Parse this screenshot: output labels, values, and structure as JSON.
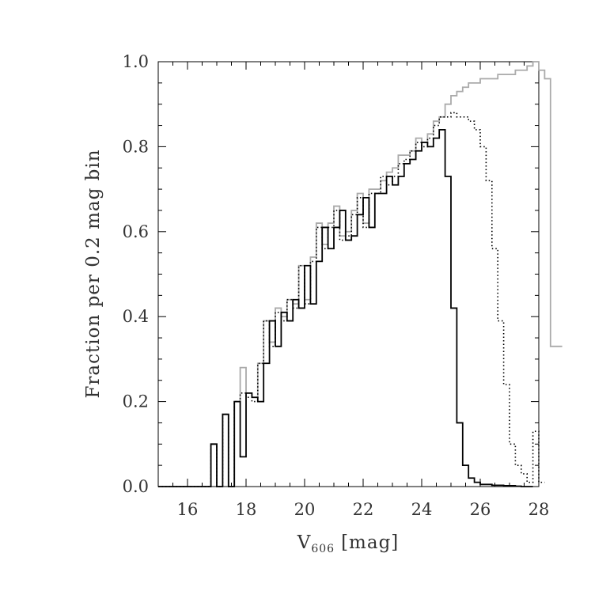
{
  "chart_data": {
    "type": "line",
    "step": true,
    "title": "",
    "xlabel": "V",
    "xlabel_subscript": "606",
    "xlabel_unit": "[mag]",
    "ylabel": "Fraction per 0.2 mag bin",
    "xlim": [
      15,
      28
    ],
    "ylim": [
      0,
      1.0
    ],
    "x_ticks": [
      "16",
      "18",
      "20",
      "22",
      "24",
      "26",
      "28"
    ],
    "y_ticks": [
      "0.0",
      "0.2",
      "0.4",
      "0.6",
      "0.8",
      "1.0"
    ],
    "grid": false,
    "legend": "none",
    "bin_width": 0.2,
    "x_start": 15.0,
    "series": [
      {
        "style": "solid",
        "color": "#aaaaaa",
        "values": [
          0,
          0,
          0,
          0,
          0,
          0,
          0,
          0,
          0,
          0.1,
          0,
          0.17,
          0,
          0.2,
          0.28,
          0.22,
          0.21,
          0.29,
          0.39,
          0.34,
          0.42,
          0.4,
          0.44,
          0.43,
          0.52,
          0.44,
          0.54,
          0.62,
          0.57,
          0.62,
          0.66,
          0.59,
          0.6,
          0.65,
          0.69,
          0.62,
          0.7,
          0.7,
          0.72,
          0.74,
          0.75,
          0.78,
          0.78,
          0.79,
          0.82,
          0.81,
          0.83,
          0.86,
          0.87,
          0.9,
          0.92,
          0.93,
          0.94,
          0.95,
          0.95,
          0.96,
          0.96,
          0.96,
          0.97,
          0.97,
          0.97,
          0.98,
          0.98,
          0.99,
          1.0,
          0.98,
          0.96,
          0.33,
          0.33
        ]
      },
      {
        "style": "dotted",
        "color": "#000000",
        "values": [
          0,
          0,
          0,
          0,
          0,
          0,
          0,
          0,
          0,
          0.1,
          0,
          0.17,
          0,
          0.2,
          0.22,
          0.21,
          0.2,
          0.29,
          0.39,
          0.33,
          0.41,
          0.39,
          0.44,
          0.42,
          0.52,
          0.43,
          0.53,
          0.61,
          0.56,
          0.61,
          0.65,
          0.58,
          0.59,
          0.64,
          0.68,
          0.61,
          0.69,
          0.69,
          0.73,
          0.71,
          0.73,
          0.76,
          0.77,
          0.79,
          0.81,
          0.8,
          0.82,
          0.85,
          0.87,
          0.87,
          0.88,
          0.87,
          0.87,
          0.86,
          0.84,
          0.8,
          0.72,
          0.56,
          0.39,
          0.24,
          0.1,
          0.05,
          0.03,
          0.01,
          0.13,
          0.01
        ]
      },
      {
        "style": "solid",
        "color": "#000000",
        "values": [
          0,
          0,
          0,
          0,
          0,
          0,
          0,
          0,
          0,
          0.1,
          0,
          0.17,
          0,
          0.2,
          0.07,
          0.22,
          0.21,
          0.2,
          0.29,
          0.39,
          0.33,
          0.41,
          0.39,
          0.44,
          0.42,
          0.52,
          0.43,
          0.53,
          0.61,
          0.56,
          0.61,
          0.65,
          0.58,
          0.59,
          0.64,
          0.68,
          0.61,
          0.69,
          0.69,
          0.73,
          0.71,
          0.73,
          0.76,
          0.77,
          0.79,
          0.81,
          0.8,
          0.82,
          0.84,
          0.73,
          0.42,
          0.15,
          0.05,
          0.02,
          0.01,
          0.005,
          0.005,
          0.003,
          0.003,
          0.002,
          0.002,
          0.001,
          0,
          0
        ]
      }
    ]
  }
}
